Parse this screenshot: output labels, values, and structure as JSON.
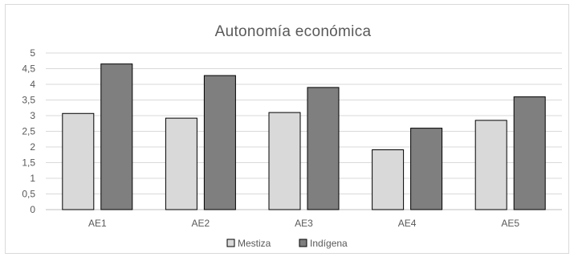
{
  "chart_data": {
    "type": "bar",
    "title": "Autonomía económica",
    "xlabel": "",
    "ylabel": "",
    "categories": [
      "AE1",
      "AE2",
      "AE3",
      "AE4",
      "AE5"
    ],
    "ylim": [
      0,
      5
    ],
    "yticks": [
      "0",
      "0,5",
      "1",
      "1,5",
      "2",
      "2,5",
      "3",
      "3,5",
      "4",
      "4,5",
      "5"
    ],
    "grid": true,
    "legend_position": "bottom",
    "series": [
      {
        "name": "Mestiza",
        "color": "#d9d9d9",
        "values": [
          3.07,
          2.92,
          3.1,
          1.91,
          2.85
        ]
      },
      {
        "name": "Indígena",
        "color": "#7f7f7f",
        "values": [
          4.65,
          4.28,
          3.9,
          2.6,
          3.6
        ]
      }
    ]
  }
}
